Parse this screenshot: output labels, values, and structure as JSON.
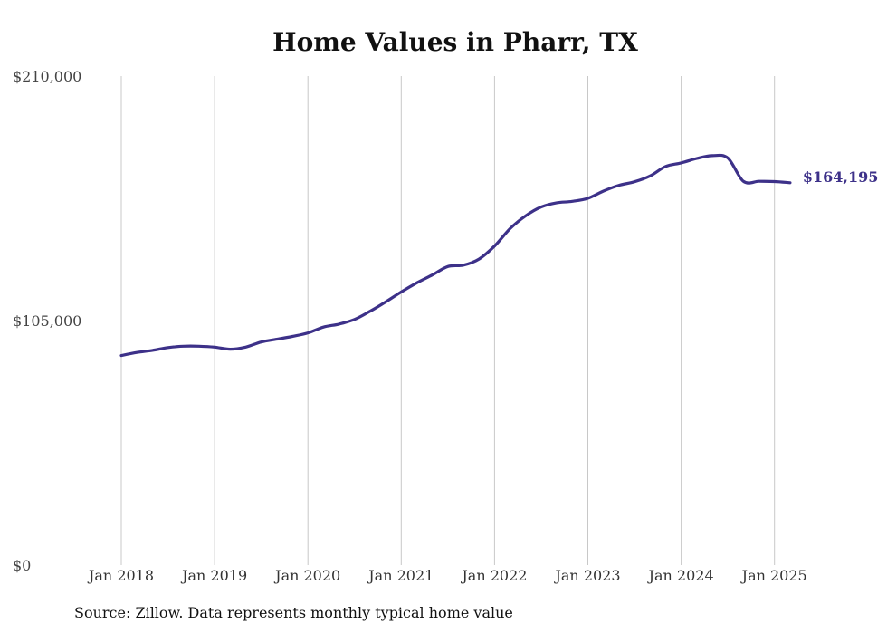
{
  "chart_data": {
    "type": "line",
    "title": "Home Values in Pharr, TX",
    "xlabel": "",
    "ylabel": "",
    "source": "Source: Zillow. Data represents monthly typical home value",
    "x_ticks": [
      "Jan 2018",
      "Jan 2019",
      "Jan 2020",
      "Jan 2021",
      "Jan 2022",
      "Jan 2023",
      "Jan 2024",
      "Jan 2025"
    ],
    "y_ticks": [
      {
        "value": 0,
        "label": "$0"
      },
      {
        "value": 105000,
        "label": "$105,000"
      },
      {
        "value": 210000,
        "label": "$210,000"
      }
    ],
    "ylim": [
      0,
      210000
    ],
    "xlim": [
      "Jan 2018",
      "Mar 2025"
    ],
    "grid": {
      "vertical": true,
      "horizontal": false
    },
    "line_color": "#3d3189",
    "end_label": "$164,195",
    "series": [
      {
        "values": [
          {
            "x": "Jan 2018",
            "y": 90000
          },
          {
            "x": "Mar 2018",
            "y": 91300
          },
          {
            "x": "May 2018",
            "y": 92200
          },
          {
            "x": "Jul 2018",
            "y": 93400
          },
          {
            "x": "Sep 2018",
            "y": 94000
          },
          {
            "x": "Nov 2018",
            "y": 94000
          },
          {
            "x": "Jan 2019",
            "y": 93600
          },
          {
            "x": "Mar 2019",
            "y": 92700
          },
          {
            "x": "May 2019",
            "y": 93600
          },
          {
            "x": "Jul 2019",
            "y": 95800
          },
          {
            "x": "Sep 2019",
            "y": 97000
          },
          {
            "x": "Nov 2019",
            "y": 98200
          },
          {
            "x": "Jan 2020",
            "y": 99700
          },
          {
            "x": "Mar 2020",
            "y": 102200
          },
          {
            "x": "May 2020",
            "y": 103500
          },
          {
            "x": "Jul 2020",
            "y": 105500
          },
          {
            "x": "Sep 2020",
            "y": 109000
          },
          {
            "x": "Nov 2020",
            "y": 113000
          },
          {
            "x": "Jan 2021",
            "y": 117300
          },
          {
            "x": "Mar 2021",
            "y": 121200
          },
          {
            "x": "May 2021",
            "y": 124600
          },
          {
            "x": "Jul 2021",
            "y": 128200
          },
          {
            "x": "Sep 2021",
            "y": 128800
          },
          {
            "x": "Nov 2021",
            "y": 131400
          },
          {
            "x": "Jan 2022",
            "y": 137000
          },
          {
            "x": "Mar 2022",
            "y": 144500
          },
          {
            "x": "May 2022",
            "y": 150000
          },
          {
            "x": "Jul 2022",
            "y": 153800
          },
          {
            "x": "Sep 2022",
            "y": 155600
          },
          {
            "x": "Nov 2022",
            "y": 156200
          },
          {
            "x": "Jan 2023",
            "y": 157500
          },
          {
            "x": "Mar 2023",
            "y": 160600
          },
          {
            "x": "May 2023",
            "y": 163100
          },
          {
            "x": "Jul 2023",
            "y": 164600
          },
          {
            "x": "Sep 2023",
            "y": 167100
          },
          {
            "x": "Nov 2023",
            "y": 171200
          },
          {
            "x": "Jan 2024",
            "y": 172700
          },
          {
            "x": "Mar 2024",
            "y": 174600
          },
          {
            "x": "May 2024",
            "y": 175800
          },
          {
            "x": "Jul 2024",
            "y": 174800
          },
          {
            "x": "Sep 2024",
            "y": 164800
          },
          {
            "x": "Nov 2024",
            "y": 164800
          },
          {
            "x": "Jan 2025",
            "y": 164700
          },
          {
            "x": "Mar 2025",
            "y": 164195
          }
        ]
      }
    ]
  }
}
